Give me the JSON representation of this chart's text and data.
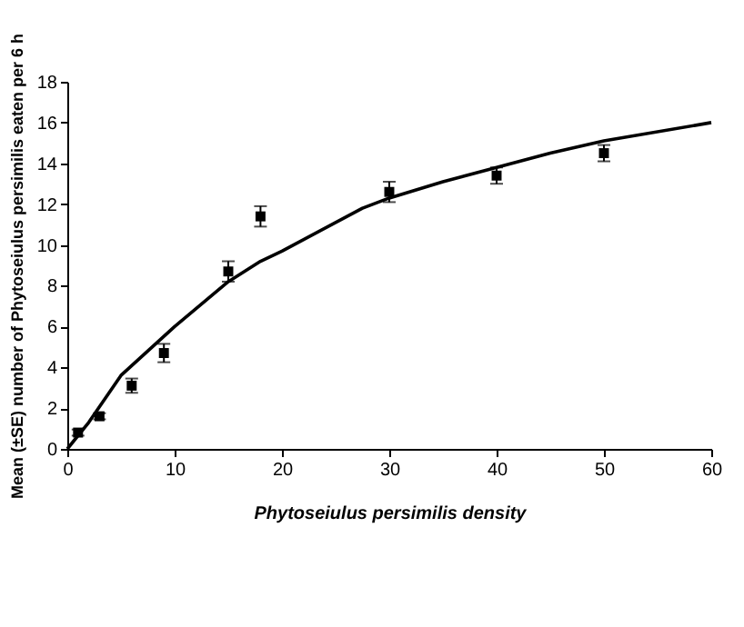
{
  "chart_data": {
    "type": "scatter",
    "xlabel": "Phytoseiulus persimilis density",
    "ylabel": "Mean (±SE) number of Phytoseiulus persimilis eaten per 6 h",
    "xlim": [
      0,
      60
    ],
    "xticks": [
      0,
      10,
      20,
      30,
      40,
      50,
      60
    ],
    "ylim": [
      0,
      18
    ],
    "yticks": [
      0,
      2,
      4,
      6,
      8,
      10,
      12,
      14,
      16,
      18
    ],
    "grid": false,
    "series": [
      {
        "color": "#000000",
        "marker": "square",
        "x": [
          1,
          3,
          6,
          9,
          15,
          18,
          30,
          40,
          50
        ],
        "values": [
          0.8,
          1.6,
          3.1,
          4.7,
          8.7,
          11.4,
          12.6,
          13.4,
          14.5
        ],
        "errors": [
          0.15,
          0.15,
          0.35,
          0.45,
          0.5,
          0.5,
          0.5,
          0.4,
          0.4
        ]
      },
      {
        "type": "line",
        "color": "#000000",
        "line_style": "solid",
        "marker": "none",
        "x": [
          0,
          2,
          5,
          10,
          15,
          18,
          20,
          27.5,
          30,
          35,
          40,
          45,
          50,
          60
        ],
        "values": [
          0,
          1.3,
          3.6,
          6.0,
          8.2,
          9.2,
          9.7,
          11.8,
          12.3,
          13.1,
          13.8,
          14.5,
          15.1,
          16.0
        ]
      }
    ]
  }
}
